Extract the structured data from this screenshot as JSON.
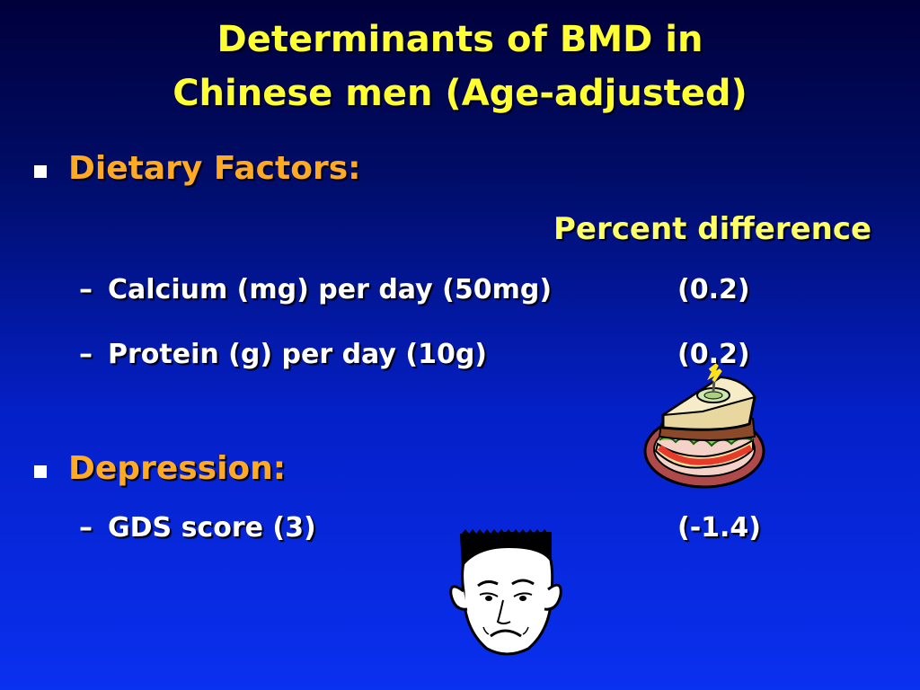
{
  "slide": {
    "title_line1": "Determinants of BMD in",
    "title_line2": "Chinese men (Age-adjusted)",
    "column_header": "Percent difference"
  },
  "sections": [
    {
      "heading": "Dietary Factors:",
      "items": [
        {
          "dash": "–",
          "label": "Calcium (mg) per day (50mg)",
          "value": "(0.2)"
        },
        {
          "dash": "–",
          "label": "Protein (g) per day (10g)",
          "value": "(0.2)"
        }
      ]
    },
    {
      "heading": "Depression:",
      "items": [
        {
          "dash": "–",
          "label": "GDS score (3)",
          "value": "(-1.4)"
        }
      ]
    }
  ],
  "clipart": [
    "sandwich-icon",
    "sad-face-icon"
  ],
  "colors": {
    "title": "#ffff33",
    "heading": "#ffaa22",
    "body_text": "#ffffff",
    "background_top": "#00003a",
    "background_bottom": "#0a30f0"
  }
}
